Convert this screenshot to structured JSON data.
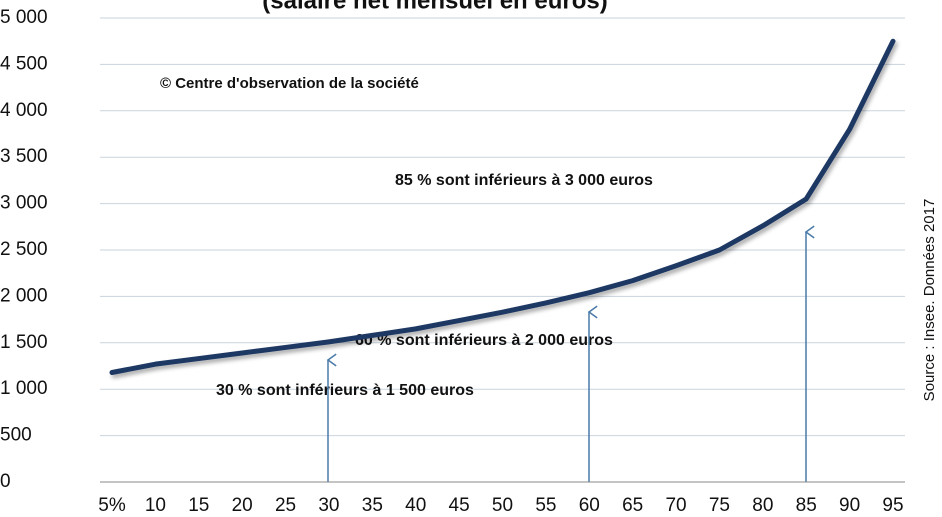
{
  "chart_data": {
    "type": "line",
    "title": "(salaire net mensuel en euros)",
    "copyright": "© Centre d'observation de la  société",
    "source": "Source : Insee. Données 2017",
    "annotations": [
      "85 % sont inférieurs à 3 000 euros",
      "60 % sont inférieurs à  2 000 euros",
      "30 % sont inférieurs à 1 500 euros"
    ],
    "categories": [
      "5%",
      "10",
      "15",
      "20",
      "25",
      "30",
      "35",
      "40",
      "45",
      "50",
      "55",
      "60",
      "65",
      "70",
      "75",
      "80",
      "85",
      "90",
      "95"
    ],
    "series": [
      {
        "name": "Salaire net mensuel",
        "color": "#1f3864",
        "values": [
          1180,
          1270,
          1330,
          1390,
          1450,
          1510,
          1580,
          1650,
          1740,
          1830,
          1930,
          2040,
          2170,
          2330,
          2500,
          2760,
          3050,
          3800,
          4750
        ]
      }
    ],
    "ylim": [
      0,
      5000
    ],
    "yticks": [
      0,
      500,
      {
        "value": 1000,
        "label": "1 000"
      },
      {
        "value": 1500,
        "label": "1 500"
      },
      {
        "value": 2000,
        "label": "2 000"
      },
      {
        "value": 2500,
        "label": "2 500"
      },
      {
        "value": 3000,
        "label": "3 000"
      },
      {
        "value": 3500,
        "label": "3 500"
      },
      {
        "value": 4000,
        "label": "4 000"
      },
      {
        "value": 4500,
        "label": "4 500"
      },
      {
        "value": 5000,
        "label": "5 000"
      }
    ],
    "grid": true
  }
}
